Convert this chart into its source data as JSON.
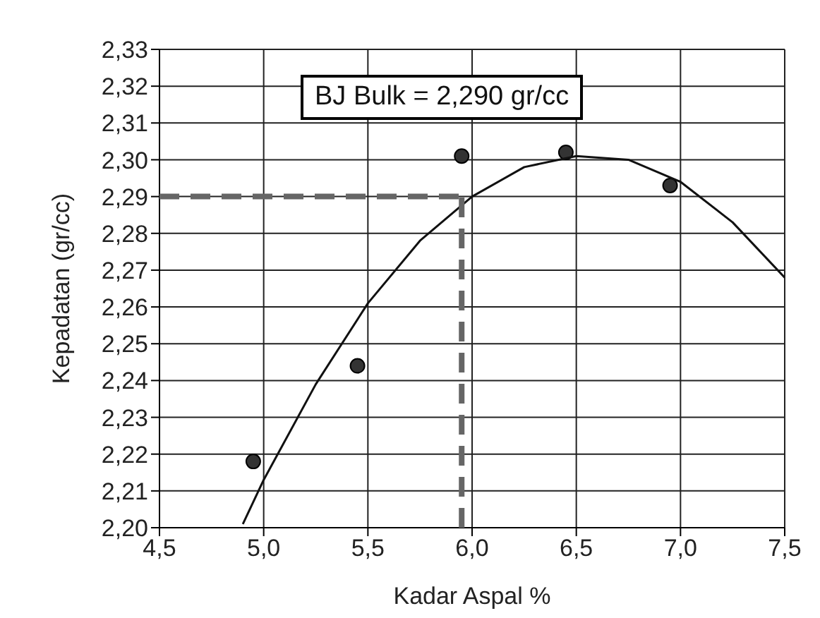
{
  "chart_data": {
    "type": "scatter",
    "xlabel": "Kadar Aspal %",
    "ylabel": "Kepadatan (gr/cc)",
    "annotations": [
      "BJ Bulk = 2,290 gr/cc"
    ],
    "xlim": [
      4.5,
      7.5
    ],
    "ylim": [
      2.2,
      2.33
    ],
    "xticks": [
      {
        "value": 4.5,
        "label": "4,5"
      },
      {
        "value": 5,
        "label": "5,0"
      },
      {
        "value": 5.5,
        "label": "5,5"
      },
      {
        "value": 6,
        "label": "6,0"
      },
      {
        "value": 6.5,
        "label": "6,5"
      },
      {
        "value": 7,
        "label": "7,0"
      },
      {
        "value": 7.5,
        "label": "7,5"
      }
    ],
    "yticks": [
      {
        "value": 2.2,
        "label": "2,20"
      },
      {
        "value": 2.21,
        "label": "2,21"
      },
      {
        "value": 2.22,
        "label": "2,22"
      },
      {
        "value": 2.23,
        "label": "2,23"
      },
      {
        "value": 2.24,
        "label": "2,24"
      },
      {
        "value": 2.25,
        "label": "2,25"
      },
      {
        "value": 2.26,
        "label": "2,26"
      },
      {
        "value": 2.27,
        "label": "2,27"
      },
      {
        "value": 2.28,
        "label": "2,28"
      },
      {
        "value": 2.29,
        "label": "2,29"
      },
      {
        "value": 2.3,
        "label": "2,30"
      },
      {
        "value": 2.31,
        "label": "2,31"
      },
      {
        "value": 2.32,
        "label": "2,32"
      },
      {
        "value": 2.33,
        "label": "2,33"
      }
    ],
    "grid": true,
    "legend": false,
    "series": [
      {
        "color": "#333333",
        "marker": "circle",
        "x": [
          4.95,
          5.45,
          5.95,
          6.45,
          6.95
        ],
        "values": [
          2.218,
          2.244,
          2.301,
          2.302,
          2.293
        ]
      },
      {
        "type": "line",
        "color": "#111111",
        "marker": "none",
        "line_style": "solid",
        "x": [
          4.9,
          5.0,
          5.25,
          5.5,
          5.75,
          6.0,
          6.25,
          6.5,
          6.75,
          7.0,
          7.25,
          7.5
        ],
        "values": [
          2.201,
          2.213,
          2.239,
          2.261,
          2.278,
          2.29,
          2.298,
          2.301,
          2.3,
          2.294,
          2.283,
          2.268
        ]
      },
      {
        "type": "line",
        "color": "#666666",
        "marker": "none",
        "line_style": "dashed",
        "x": [
          4.5,
          5.95
        ],
        "values": [
          2.29,
          2.29
        ]
      },
      {
        "type": "line",
        "color": "#666666",
        "marker": "none",
        "line_style": "dashed",
        "x": [
          5.95,
          5.95
        ],
        "values": [
          2.2,
          2.29
        ]
      }
    ]
  }
}
